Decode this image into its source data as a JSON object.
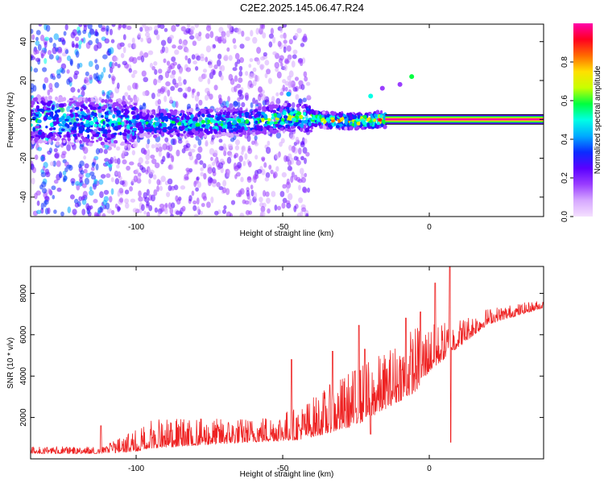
{
  "figure": {
    "title": "C2E2.2025.145.06.47.R24"
  },
  "chart_data": [
    {
      "type": "heatmap",
      "xlabel": "Height of straight line (km)",
      "ylabel": "Frequency (Hz)",
      "xlim": [
        -136,
        39
      ],
      "ylim": [
        -50,
        49
      ],
      "xticks": [
        -100,
        -50,
        0
      ],
      "yticks": [
        -40,
        -20,
        0,
        20,
        40
      ],
      "x_tick_labels": [
        "-100",
        "-50",
        "0"
      ],
      "y_tick_labels": [
        "-40",
        "-20",
        "0",
        "20",
        "40"
      ],
      "colorbar": {
        "label": "Normalized spectral amplitude",
        "range": [
          0,
          1
        ],
        "ticks": [
          0.0,
          0.2,
          0.4,
          0.6,
          0.8
        ],
        "tick_labels": [
          "0.0",
          "0.2",
          "0.4",
          "0.6",
          "0.8"
        ],
        "colormap": [
          "#f5e0ff",
          "#d6a8ff",
          "#9a3dff",
          "#5a00ff",
          "#0a2cff",
          "#00aaff",
          "#00ffe5",
          "#00ff40",
          "#c8ff00",
          "#ffe000",
          "#ff6a00",
          "#ff0020",
          "#ff00aa"
        ]
      },
      "ridge": [
        {
          "x": -136,
          "y": 0.0
        },
        {
          "x": -110,
          "y": -1.5
        },
        {
          "x": -100,
          "y": -2.0
        },
        {
          "x": -80,
          "y": -2.0
        },
        {
          "x": -60,
          "y": -1.0
        },
        {
          "x": -45,
          "y": 1.5
        },
        {
          "x": -35,
          "y": -0.5
        },
        {
          "x": -25,
          "y": -1.0
        },
        {
          "x": -15,
          "y": 0.0
        },
        {
          "x": 0,
          "y": 0.0
        },
        {
          "x": 39,
          "y": 0.0
        }
      ],
      "ridge_amplitude": [
        {
          "x": -136,
          "a": 0.55
        },
        {
          "x": -100,
          "a": 0.55
        },
        {
          "x": -80,
          "a": 0.62
        },
        {
          "x": -50,
          "a": 0.7
        },
        {
          "x": -30,
          "a": 0.85
        },
        {
          "x": -15,
          "a": 0.95
        },
        {
          "x": 39,
          "a": 1.0
        }
      ],
      "bright_spots": [
        {
          "x": -48,
          "y": 13,
          "a": 0.45
        },
        {
          "x": -20,
          "y": 12,
          "a": 0.5
        },
        {
          "x": -6,
          "y": 22,
          "a": 0.55
        },
        {
          "x": -16,
          "y": 16,
          "a": 0.15
        },
        {
          "x": -10,
          "y": 18,
          "a": 0.15
        }
      ]
    },
    {
      "type": "line",
      "xlabel": "Height of straight line (km)",
      "ylabel": "SNR (10 * v/v)",
      "xlim": [
        -136,
        39
      ],
      "ylim": [
        0,
        9300
      ],
      "xticks": [
        -100,
        -50,
        0
      ],
      "yticks": [
        2000,
        4000,
        6000,
        8000
      ],
      "x_tick_labels": [
        "-100",
        "-50",
        "0"
      ],
      "y_tick_labels": [
        "2000",
        "4000",
        "6000",
        "8000"
      ],
      "series": [
        {
          "color": "#ee2222",
          "envelope": [
            {
              "x": -136,
              "base": 250,
              "top": 600
            },
            {
              "x": -112,
              "base": 250,
              "top": 600
            },
            {
              "x": -100,
              "base": 350,
              "top": 1400
            },
            {
              "x": -95,
              "base": 500,
              "top": 1900
            },
            {
              "x": -60,
              "base": 800,
              "top": 2000
            },
            {
              "x": -45,
              "base": 900,
              "top": 2500
            },
            {
              "x": -35,
              "base": 1200,
              "top": 3500
            },
            {
              "x": -25,
              "base": 1600,
              "top": 4500
            },
            {
              "x": -15,
              "base": 2400,
              "top": 5200
            },
            {
              "x": -5,
              "base": 3200,
              "top": 6500
            },
            {
              "x": 0,
              "base": 4200,
              "top": 6500
            },
            {
              "x": 10,
              "base": 5400,
              "top": 6800
            },
            {
              "x": 20,
              "base": 6500,
              "top": 7300
            },
            {
              "x": 39,
              "base": 7300,
              "top": 7700
            }
          ],
          "spikes": [
            {
              "x": -112,
              "y": 1600
            },
            {
              "x": -47,
              "y": 4800
            },
            {
              "x": -33,
              "y": 5200
            },
            {
              "x": -24,
              "y": 6450
            },
            {
              "x": -22,
              "y": 5300
            },
            {
              "x": -20,
              "y": 1200
            },
            {
              "x": -8,
              "y": 6800
            },
            {
              "x": -3,
              "y": 7100
            },
            {
              "x": 2,
              "y": 8500
            },
            {
              "x": 7,
              "y": 9300
            },
            {
              "x": 7.3,
              "y": 800
            }
          ]
        }
      ]
    }
  ]
}
